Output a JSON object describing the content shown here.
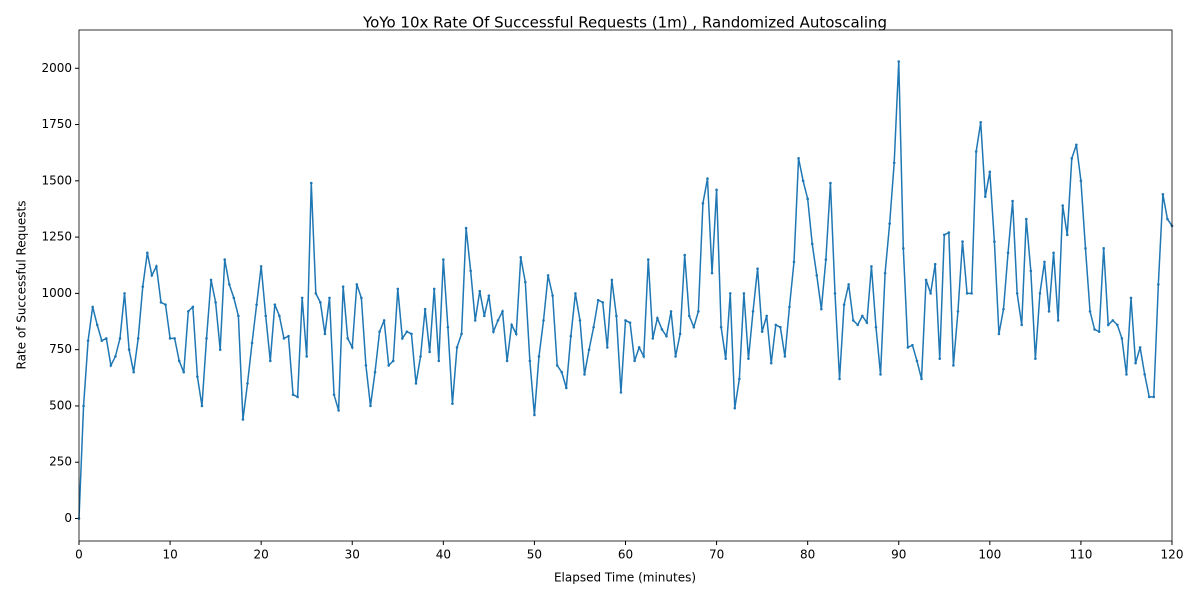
{
  "chart_data": {
    "type": "line",
    "title": "YoYo 10x Rate Of Successful Requests (1m) , Randomized Autoscaling",
    "xlabel": "Elapsed Time (minutes)",
    "ylabel": "Rate of Successful Requests",
    "x": [
      0,
      0.5,
      1,
      1.5,
      2,
      2.5,
      3,
      3.5,
      4,
      4.5,
      5,
      5.5,
      6,
      6.5,
      7,
      7.5,
      8,
      8.5,
      9,
      9.5,
      10,
      10.5,
      11,
      11.5,
      12,
      12.5,
      13,
      13.5,
      14,
      14.5,
      15,
      15.5,
      16,
      16.5,
      17,
      17.5,
      18,
      18.5,
      19,
      19.5,
      20,
      20.5,
      21,
      21.5,
      22,
      22.5,
      23,
      23.5,
      24,
      24.5,
      25,
      25.5,
      26,
      26.5,
      27,
      27.5,
      28,
      28.5,
      29,
      29.5,
      30,
      30.5,
      31,
      31.5,
      32,
      32.5,
      33,
      33.5,
      34,
      34.5,
      35,
      35.5,
      36,
      36.5,
      37,
      37.5,
      38,
      38.5,
      39,
      39.5,
      40,
      40.5,
      41,
      41.5,
      42,
      42.5,
      43,
      43.5,
      44,
      44.5,
      45,
      45.5,
      46,
      46.5,
      47,
      47.5,
      48,
      48.5,
      49,
      49.5,
      50,
      50.5,
      51,
      51.5,
      52,
      52.5,
      53,
      53.5,
      54,
      54.5,
      55,
      55.5,
      56,
      56.5,
      57,
      57.5,
      58,
      58.5,
      59,
      59.5,
      60,
      60.5,
      61,
      61.5,
      62,
      62.5,
      63,
      63.5,
      64,
      64.5,
      65,
      65.5,
      66,
      66.5,
      67,
      67.5,
      68,
      68.5,
      69,
      69.5,
      70,
      70.5,
      71,
      71.5,
      72,
      72.5,
      73,
      73.5,
      74,
      74.5,
      75,
      75.5,
      76,
      76.5,
      77,
      77.5,
      78,
      78.5,
      79,
      79.5,
      80,
      80.5,
      81,
      81.5,
      82,
      82.5,
      83,
      83.5,
      84,
      84.5,
      85,
      85.5,
      86,
      86.5,
      87,
      87.5,
      88,
      88.5,
      89,
      89.5,
      90,
      90.5,
      91,
      91.5,
      92,
      92.5,
      93,
      93.5,
      94,
      94.5,
      95,
      95.5,
      96,
      96.5,
      97,
      97.5,
      98,
      98.5,
      99,
      99.5,
      100,
      100.5,
      101,
      101.5,
      102,
      102.5,
      103,
      103.5,
      104,
      104.5,
      105,
      105.5,
      106,
      106.5,
      107,
      107.5,
      108,
      108.5,
      109,
      109.5,
      110,
      110.5,
      111,
      111.5,
      112,
      112.5,
      113,
      113.5,
      114,
      114.5,
      115,
      115.5,
      116,
      116.5,
      117,
      117.5,
      118,
      118.5,
      119,
      119.5,
      120
    ],
    "series": [
      {
        "color": "#1f77b4",
        "values": [
          0,
          500,
          790,
          940,
          860,
          790,
          800,
          680,
          720,
          800,
          1000,
          750,
          650,
          800,
          1030,
          1180,
          1080,
          1120,
          960,
          950,
          800,
          800,
          700,
          650,
          920,
          940,
          630,
          500,
          800,
          1060,
          960,
          750,
          1150,
          1040,
          980,
          900,
          440,
          600,
          780,
          950,
          1120,
          900,
          700,
          950,
          900,
          800,
          810,
          550,
          540,
          980,
          720,
          1490,
          1000,
          960,
          820,
          980,
          550,
          480,
          1030,
          800,
          760,
          1040,
          980,
          680,
          500,
          650,
          830,
          880,
          680,
          700,
          1020,
          800,
          830,
          820,
          600,
          720,
          930,
          740,
          1020,
          700,
          1150,
          850,
          510,
          760,
          820,
          1290,
          1100,
          880,
          1010,
          900,
          990,
          830,
          880,
          920,
          700,
          860,
          820,
          1160,
          1050,
          700,
          460,
          720,
          880,
          1080,
          990,
          680,
          650,
          580,
          810,
          1000,
          880,
          640,
          750,
          850,
          970,
          960,
          760,
          1060,
          900,
          560,
          880,
          870,
          700,
          760,
          720,
          1150,
          800,
          890,
          840,
          810,
          920,
          720,
          820,
          1170,
          900,
          850,
          920,
          1400,
          1510,
          1090,
          1460,
          850,
          710,
          1000,
          490,
          620,
          1000,
          710,
          920,
          1110,
          830,
          900,
          690,
          860,
          850,
          720,
          940,
          1140,
          1600,
          1500,
          1420,
          1220,
          1080,
          930,
          1150,
          1490,
          1000,
          620,
          950,
          1040,
          880,
          860,
          900,
          870,
          1120,
          850,
          640,
          1090,
          1310,
          1580,
          2030,
          1200,
          760,
          770,
          700,
          620,
          1060,
          1000,
          1130,
          710,
          1260,
          1270,
          680,
          920,
          1230,
          1000,
          1000,
          1630,
          1760,
          1430,
          1540,
          1230,
          820,
          930,
          1180,
          1410,
          1000,
          860,
          1330,
          1100,
          710,
          1000,
          1140,
          920,
          1180,
          880,
          1390,
          1260,
          1600,
          1660,
          1500,
          1200,
          920,
          840,
          830,
          1200,
          860,
          880,
          860,
          800,
          640,
          980,
          690,
          760,
          640,
          540,
          540,
          1040,
          1440,
          1330,
          1300
        ]
      }
    ],
    "xlim": [
      0,
      120
    ],
    "xticks": [
      0,
      10,
      20,
      30,
      40,
      50,
      60,
      70,
      80,
      90,
      100,
      110,
      120
    ],
    "ylim": [
      -100,
      2170
    ],
    "yticks": [
      0,
      250,
      500,
      750,
      1000,
      1250,
      1500,
      1750,
      2000
    ]
  }
}
